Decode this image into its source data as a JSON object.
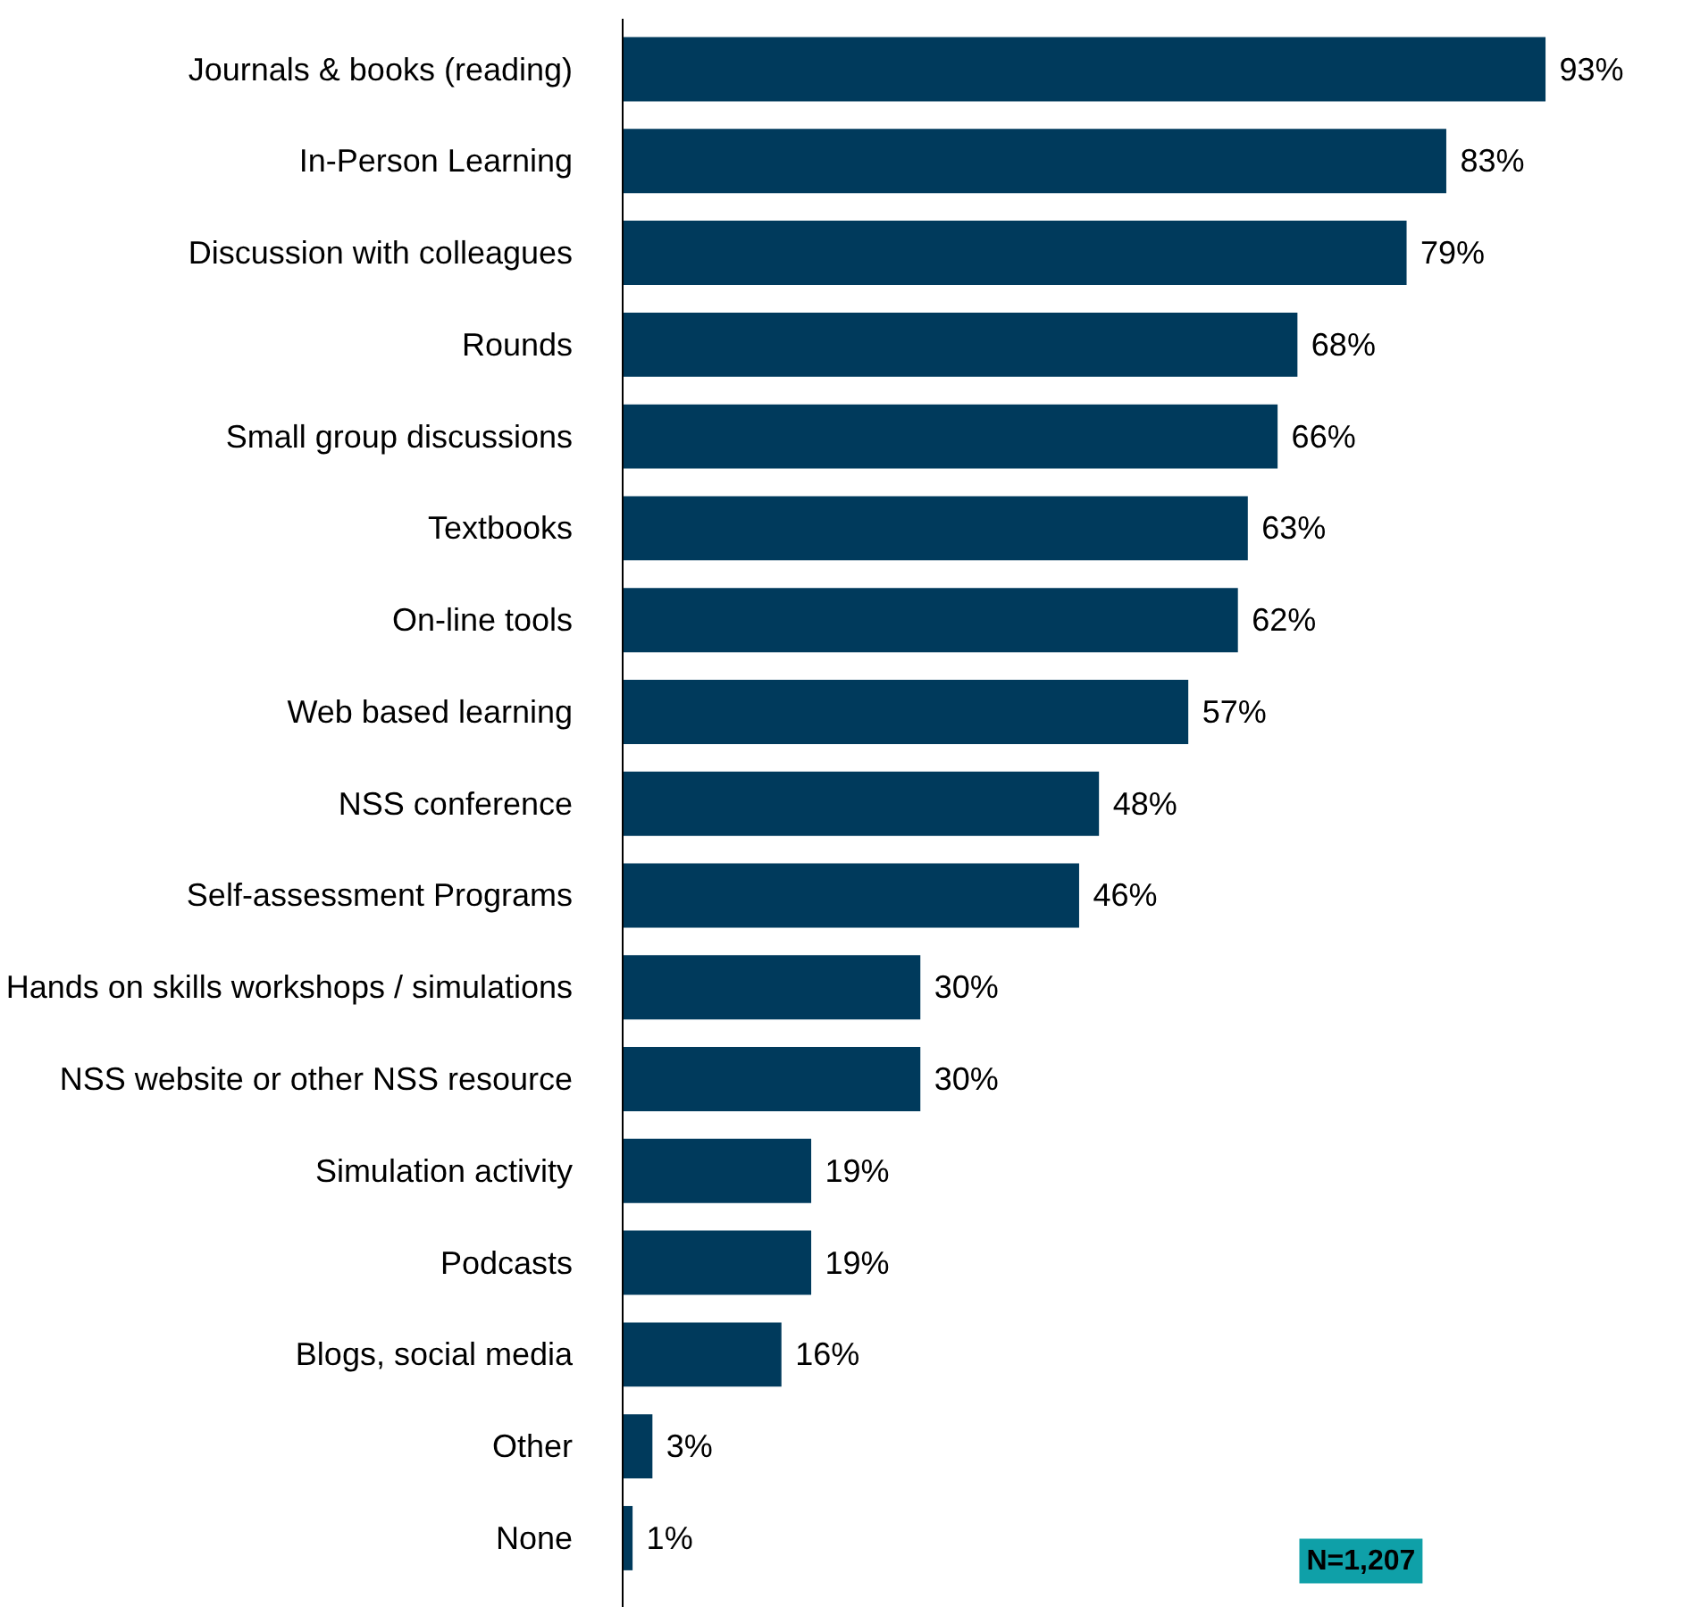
{
  "chart_data": {
    "type": "bar",
    "orientation": "horizontal",
    "categories": [
      "Journals & books (reading)",
      "In-Person Learning",
      "Discussion with colleagues",
      "Rounds",
      "Small group discussions",
      "Textbooks",
      "On-line tools",
      "Web based learning",
      "NSS conference",
      "Self-assessment Programs",
      "Hands on skills workshops / simulations",
      "NSS website or other NSS resource",
      "Simulation activity",
      "Podcasts",
      "Blogs, social media",
      "Other",
      "None"
    ],
    "values": [
      93,
      83,
      79,
      68,
      66,
      63,
      62,
      57,
      48,
      46,
      30,
      30,
      19,
      19,
      16,
      3,
      1
    ],
    "value_labels": [
      "93%",
      "83%",
      "79%",
      "68%",
      "66%",
      "63%",
      "62%",
      "57%",
      "48%",
      "46%",
      "30%",
      "30%",
      "19%",
      "19%",
      "16%",
      "3%",
      "1%"
    ],
    "color": "#003a5c",
    "annotations": [
      "N=1,207"
    ],
    "grid": false
  }
}
